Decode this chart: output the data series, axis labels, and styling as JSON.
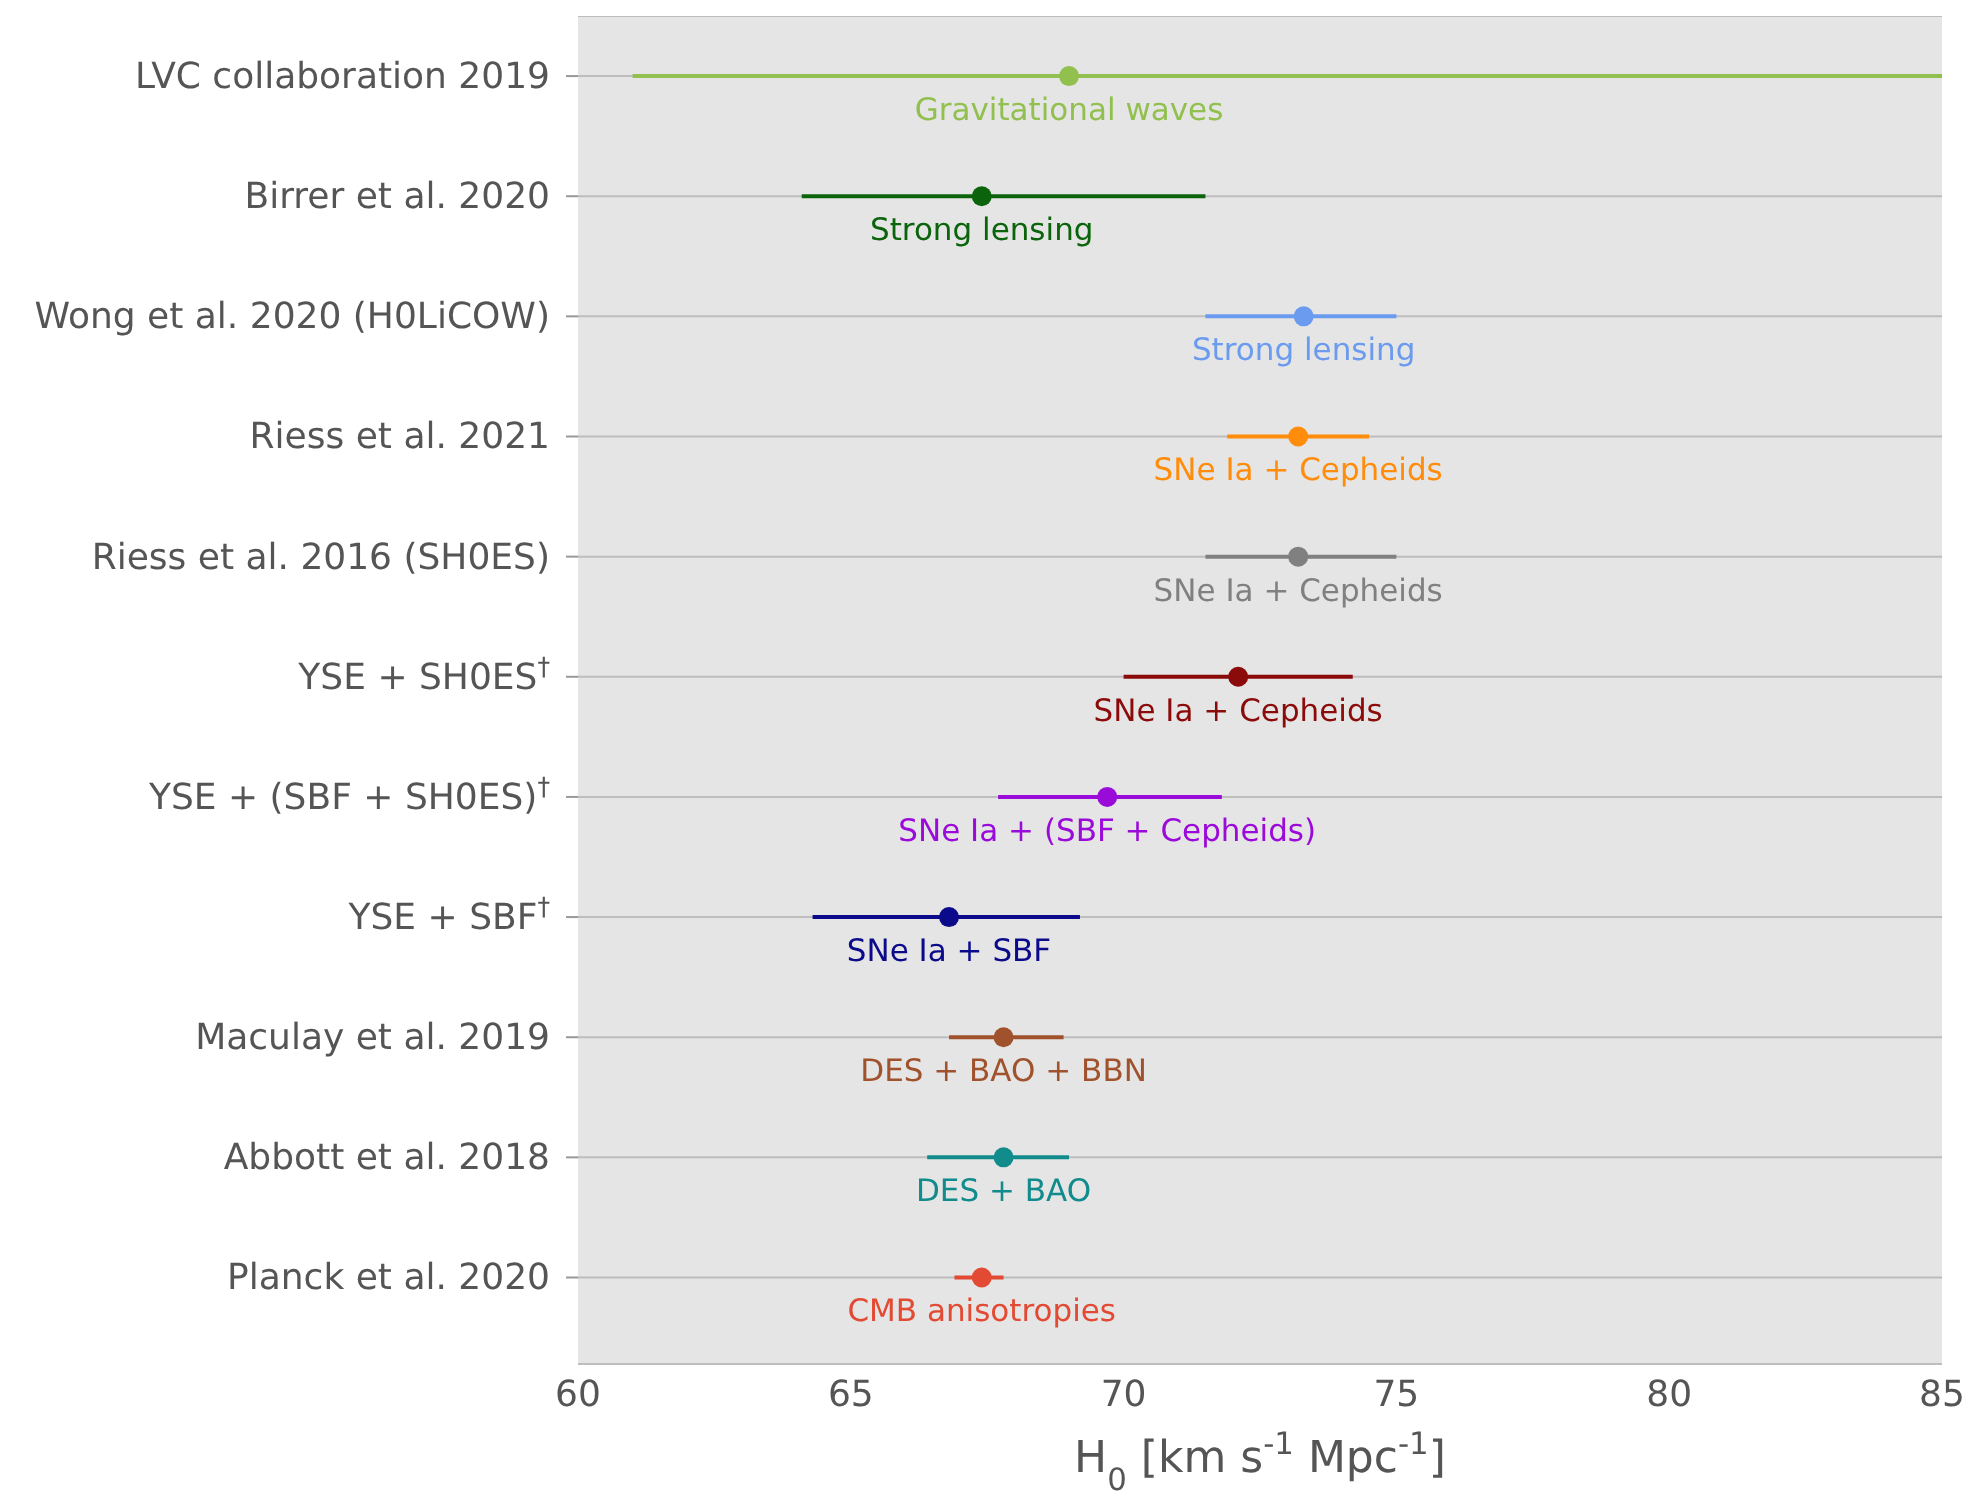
{
  "chart_data": {
    "type": "scatter",
    "orientation": "horizontal",
    "categories": [
      "LVC collaboration 2019",
      "Birrer et al. 2020",
      "Wong et al. 2020 (H0LiCOW)",
      "Riess et al. 2021",
      "Riess et al. 2016 (SH0ES)",
      "YSE + SH0ES$^{†}$",
      "YSE + (SBF + SH0ES)$^{†}$",
      "YSE + SBF$^{†}$",
      "Maculay et al. 2019",
      "Abbott et al. 2018",
      "Planck et al. 2020"
    ],
    "values": [
      69.0,
      67.4,
      73.3,
      73.2,
      73.2,
      72.1,
      69.7,
      66.8,
      67.8,
      67.8,
      67.4
    ],
    "errors": [
      [
        61.0,
        85.0
      ],
      [
        64.1,
        71.5
      ],
      [
        71.5,
        75.0
      ],
      [
        71.9,
        74.5
      ],
      [
        71.5,
        75.0
      ],
      [
        70.0,
        74.2
      ],
      [
        67.7,
        71.8
      ],
      [
        64.3,
        69.2
      ],
      [
        66.8,
        68.9
      ],
      [
        66.4,
        69.0
      ],
      [
        66.9,
        67.8
      ]
    ],
    "colors": [
      "#92c04f",
      "#0b640b",
      "#6b9bef",
      "#ff8c0a",
      "#808080",
      "#8b0a0a",
      "#9a0ad8",
      "#0a0a8b",
      "#a0522d",
      "#118b8b",
      "#e24a33"
    ],
    "xlabel": "H$_{0}$ [km s$^{-1}$ Mpc$^{-1}$]",
    "xlim": [
      60,
      85
    ],
    "xticks": [
      60,
      65,
      70,
      75,
      80,
      85
    ],
    "grid": "y",
    "marker": "circle",
    "annotations": [
      {
        "text": "Gravitational waves",
        "x": 69.0,
        "y": "LVC collaboration 2019"
      },
      {
        "text": "Strong lensing",
        "x": 67.4,
        "y": "Birrer et al. 2020"
      },
      {
        "text": "Strong lensing",
        "x": 73.3,
        "y": "Wong et al. 2020 (H0LiCOW)"
      },
      {
        "text": "SNe Ia + Cepheids",
        "x": 73.2,
        "y": "Riess et al. 2021"
      },
      {
        "text": "SNe Ia + Cepheids",
        "x": 73.2,
        "y": "Riess et al. 2016 (SH0ES)"
      },
      {
        "text": "SNe Ia + Cepheids",
        "x": 72.1,
        "y": "YSE + SH0ES$^{†}$"
      },
      {
        "text": "SNe Ia + (SBF + Cepheids)",
        "x": 69.7,
        "y": "YSE + (SBF + SH0ES)$^{†}$"
      },
      {
        "text": "SNe Ia + SBF",
        "x": 66.8,
        "y": "YSE + SBF$^{†}$"
      },
      {
        "text": "DES + BAO + BBN",
        "x": 67.8,
        "y": "Maculay et al. 2019"
      },
      {
        "text": "DES + BAO",
        "x": 67.8,
        "y": "Abbott et al. 2018"
      },
      {
        "text": "CMB anisotropies",
        "x": 67.4,
        "y": "Planck et al. 2020"
      }
    ]
  }
}
